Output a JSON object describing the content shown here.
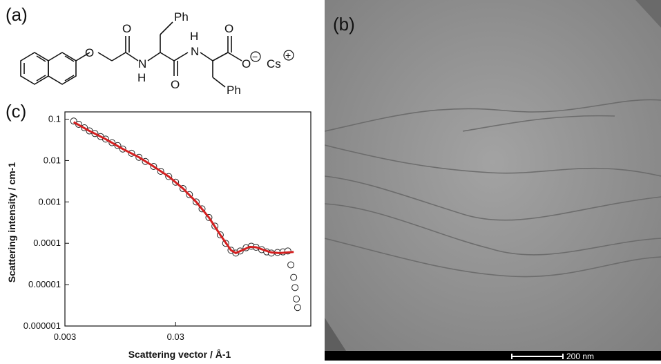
{
  "panels": {
    "a": {
      "label": "(a)"
    },
    "b": {
      "label": "(b)",
      "scale_bar": "200 nm"
    },
    "c": {
      "label": "(c)"
    }
  },
  "molecule": {
    "atoms": [
      "O",
      "O",
      "H",
      "N",
      "Ph",
      "H",
      "N",
      "O",
      "O",
      "O",
      "Cs",
      "Ph"
    ],
    "charges": [
      "−",
      "+"
    ]
  },
  "colors": {
    "data_points": "#222222",
    "fit_line": "#d42020",
    "tem_background": "#9a9a9a"
  },
  "chart_data": {
    "type": "scatter",
    "xlabel": "Scattering vector / Å-1",
    "ylabel": "Scattering intensity / cm-1",
    "x_scale": "log",
    "y_scale": "log",
    "xlim": [
      0.003,
      0.5
    ],
    "ylim": [
      1e-06,
      0.15
    ],
    "x_ticks": [
      0.003,
      0.03
    ],
    "x_tick_labels": [
      "0.003",
      "0.03"
    ],
    "y_ticks": [
      0.1,
      0.01,
      0.001,
      0.0001,
      1e-05,
      1e-06
    ],
    "y_tick_labels": [
      "0.1",
      "0.01",
      "0.001",
      "0.0001",
      "0.00001",
      "0.000001"
    ],
    "series": [
      {
        "kind": "points",
        "x": [
          0.0036,
          0.004,
          0.0045,
          0.005,
          0.0056,
          0.0063,
          0.007,
          0.008,
          0.009,
          0.01,
          0.012,
          0.014,
          0.016,
          0.019,
          0.022,
          0.026,
          0.03,
          0.035,
          0.04,
          0.046,
          0.052,
          0.06,
          0.068,
          0.076,
          0.085,
          0.095,
          0.105,
          0.115,
          0.13,
          0.145,
          0.16,
          0.18,
          0.2,
          0.22,
          0.25,
          0.28,
          0.31,
          0.33,
          0.35,
          0.36,
          0.37,
          0.38
        ],
        "y": [
          0.09,
          0.075,
          0.062,
          0.052,
          0.045,
          0.038,
          0.033,
          0.027,
          0.023,
          0.019,
          0.015,
          0.012,
          0.0095,
          0.0072,
          0.0055,
          0.0041,
          0.003,
          0.0021,
          0.0015,
          0.001,
          0.00068,
          0.00042,
          0.00026,
          0.00016,
          0.0001,
          6.8e-05,
          5.8e-05,
          6.5e-05,
          7.8e-05,
          8.5e-05,
          8e-05,
          7e-05,
          6.2e-05,
          5.8e-05,
          6e-05,
          6.2e-05,
          6.5e-05,
          3e-05,
          1.5e-05,
          8.5e-06,
          4.5e-06,
          2.8e-06
        ]
      },
      {
        "kind": "line",
        "x": [
          0.0036,
          0.005,
          0.007,
          0.01,
          0.014,
          0.019,
          0.026,
          0.035,
          0.046,
          0.06,
          0.076,
          0.095,
          0.105,
          0.12,
          0.14,
          0.16,
          0.19,
          0.22,
          0.26,
          0.31,
          0.35
        ],
        "y": [
          0.085,
          0.052,
          0.033,
          0.019,
          0.012,
          0.0072,
          0.0041,
          0.0021,
          0.001,
          0.00042,
          0.00016,
          6.8e-05,
          5.8e-05,
          6.8e-05,
          8.2e-05,
          8e-05,
          6.8e-05,
          6e-05,
          5.8e-05,
          6e-05,
          6.2e-05
        ]
      }
    ]
  }
}
